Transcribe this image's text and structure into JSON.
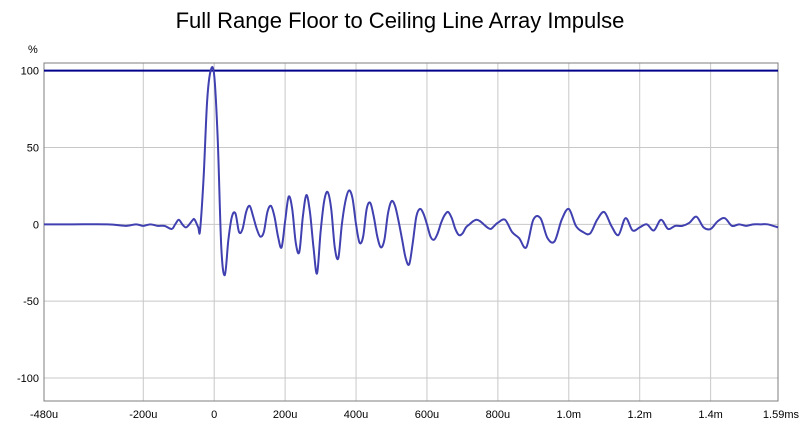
{
  "chart_data": {
    "type": "line",
    "title": "Full Range Floor to Ceiling Line Array Impulse",
    "y_unit_label": "%",
    "xlabel": "",
    "ylabel": "",
    "xlim": [
      -480,
      1590
    ],
    "ylim": [
      -115,
      105
    ],
    "grid": true,
    "x_ticks": [
      {
        "value": -480,
        "label": "-480u"
      },
      {
        "value": -200,
        "label": "-200u"
      },
      {
        "value": 0,
        "label": "0"
      },
      {
        "value": 200,
        "label": "200u"
      },
      {
        "value": 400,
        "label": "400u"
      },
      {
        "value": 600,
        "label": "600u"
      },
      {
        "value": 800,
        "label": "800u"
      },
      {
        "value": 1000,
        "label": "1.0m"
      },
      {
        "value": 1200,
        "label": "1.2m"
      },
      {
        "value": 1400,
        "label": "1.4m"
      },
      {
        "value": 1590,
        "label": "1.59ms"
      }
    ],
    "y_ticks": [
      {
        "value": 100,
        "label": "100"
      },
      {
        "value": 50,
        "label": "50"
      },
      {
        "value": 0,
        "label": "0"
      },
      {
        "value": -50,
        "label": "-50"
      },
      {
        "value": -100,
        "label": "-100"
      }
    ],
    "reference_line": {
      "y": 100,
      "color": "#00008b"
    },
    "series": [
      {
        "color": "#4040b0",
        "x": [
          -480,
          -400,
          -300,
          -250,
          -220,
          -200,
          -180,
          -160,
          -140,
          -120,
          -110,
          -100,
          -90,
          -80,
          -70,
          -60,
          -55,
          -45,
          -40,
          -30,
          -20,
          -10,
          0,
          10,
          20,
          30,
          40,
          50,
          60,
          70,
          80,
          90,
          100,
          110,
          120,
          130,
          140,
          150,
          160,
          170,
          180,
          190,
          200,
          210,
          220,
          230,
          240,
          250,
          260,
          270,
          280,
          290,
          300,
          310,
          320,
          330,
          340,
          350,
          360,
          370,
          380,
          390,
          400,
          410,
          420,
          430,
          440,
          450,
          460,
          470,
          480,
          490,
          500,
          510,
          520,
          530,
          540,
          550,
          560,
          570,
          580,
          590,
          600,
          610,
          620,
          630,
          640,
          650,
          660,
          670,
          680,
          690,
          700,
          710,
          720,
          730,
          740,
          750,
          760,
          770,
          780,
          790,
          800,
          820,
          840,
          860,
          880,
          900,
          920,
          940,
          960,
          980,
          1000,
          1020,
          1040,
          1060,
          1080,
          1100,
          1120,
          1140,
          1160,
          1180,
          1200,
          1220,
          1240,
          1260,
          1280,
          1300,
          1320,
          1340,
          1360,
          1380,
          1400,
          1420,
          1440,
          1460,
          1480,
          1500,
          1520,
          1540,
          1560,
          1590
        ],
        "y": [
          0,
          0,
          0,
          -1,
          0,
          -1,
          0,
          -1,
          -1,
          -3,
          0,
          3,
          0,
          -2,
          0,
          3,
          3,
          -2,
          -4,
          30,
          80,
          100,
          97,
          55,
          -15,
          -33,
          -10,
          5,
          7,
          -5,
          -3,
          8,
          12,
          5,
          -3,
          -8,
          -5,
          8,
          12,
          5,
          -8,
          -15,
          2,
          18,
          10,
          -12,
          -18,
          5,
          19,
          8,
          -15,
          -32,
          -5,
          15,
          21,
          10,
          -15,
          -22,
          0,
          15,
          22,
          17,
          0,
          -12,
          -8,
          10,
          14,
          5,
          -8,
          -15,
          -10,
          7,
          15,
          12,
          2,
          -10,
          -22,
          -26,
          -12,
          5,
          10,
          7,
          0,
          -8,
          -10,
          -6,
          1,
          6,
          8,
          4,
          -3,
          -7,
          -6,
          -2,
          0,
          2,
          3,
          2,
          0,
          -2,
          -3,
          -1,
          1,
          3,
          -5,
          -9,
          -15,
          3,
          4,
          -9,
          -11,
          3,
          10,
          -1,
          -5,
          -6,
          3,
          8,
          -1,
          -7,
          4,
          -4,
          -2,
          0,
          -4,
          3,
          -3,
          -1,
          -1,
          1,
          5,
          -2,
          -3,
          2,
          4,
          -1,
          0,
          -1,
          0,
          0,
          0,
          -2
        ]
      }
    ]
  }
}
